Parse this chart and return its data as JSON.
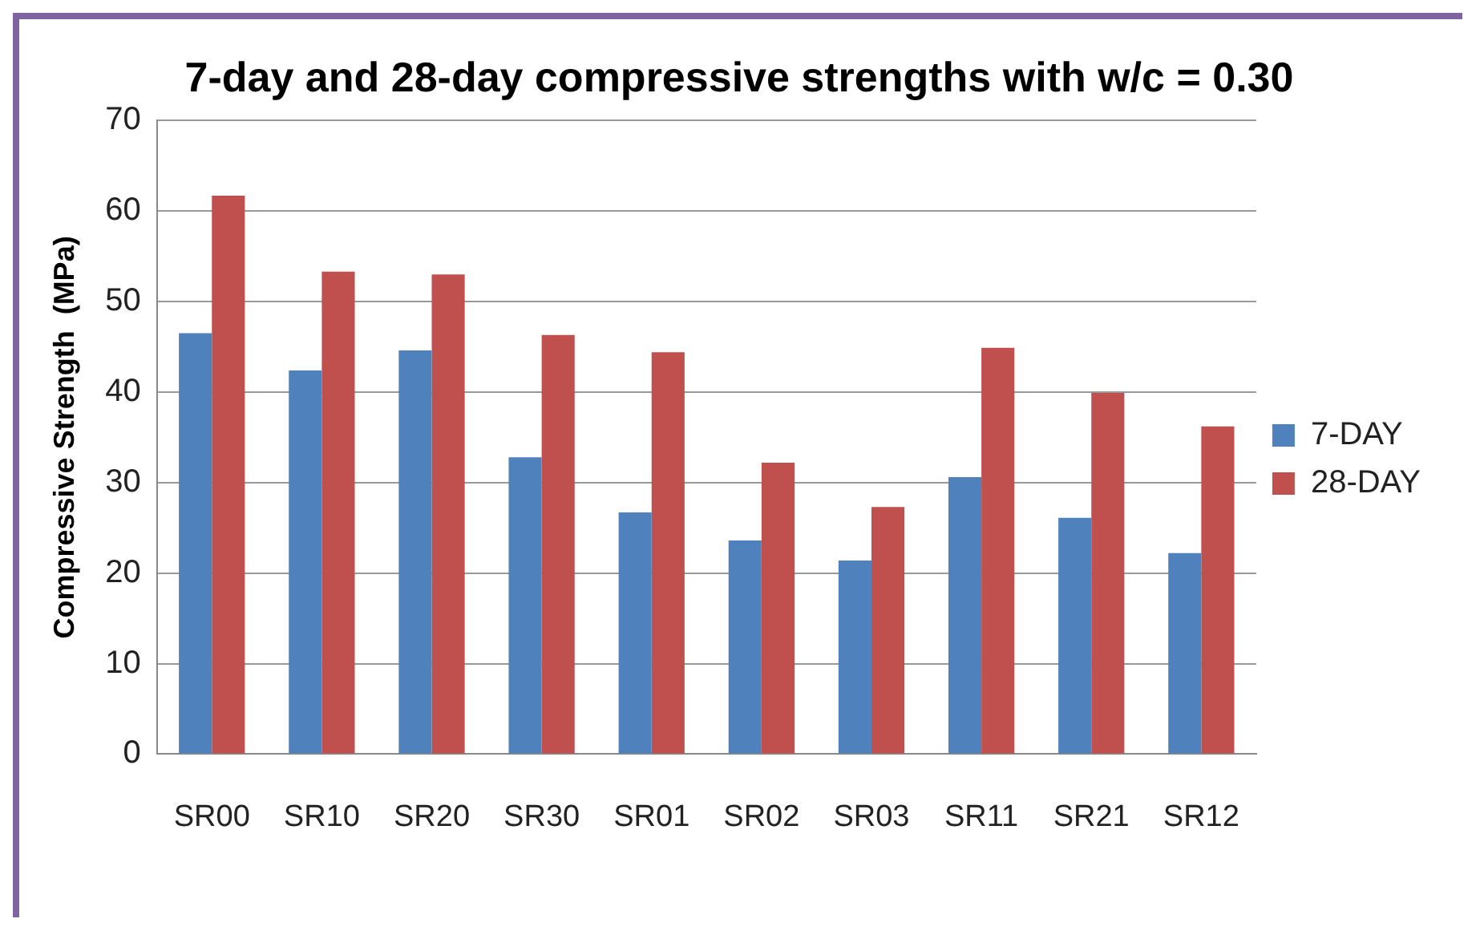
{
  "chart_data": {
    "type": "bar",
    "title": "7-day and 28-day compressive strengths with w/c = 0.30",
    "ylabel": "Compressive Strength  (MPa)",
    "categories": [
      "SR00",
      "SR10",
      "SR20",
      "SR30",
      "SR01",
      "SR02",
      "SR03",
      "SR11",
      "SR21",
      "SR12"
    ],
    "series": [
      {
        "name": "7-DAY",
        "color": "#4f81bd",
        "values": [
          46.5,
          42.4,
          44.6,
          32.8,
          26.7,
          23.6,
          21.4,
          30.6,
          26.1,
          22.2
        ]
      },
      {
        "name": "28-DAY",
        "color": "#c0504d",
        "values": [
          61.7,
          53.3,
          53.0,
          46.3,
          44.4,
          32.2,
          27.3,
          44.9,
          39.9,
          36.2
        ]
      }
    ],
    "ylim": [
      0,
      70
    ],
    "yticks": [
      0,
      10,
      20,
      30,
      40,
      50,
      60,
      70
    ],
    "grid": "y",
    "legend": "right"
  }
}
